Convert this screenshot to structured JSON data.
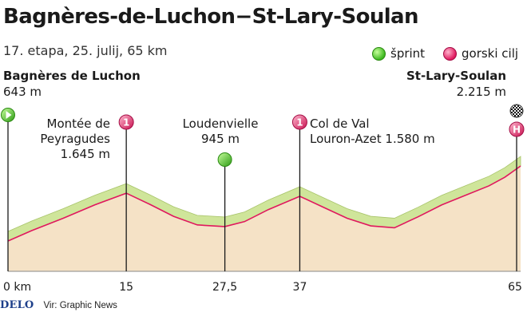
{
  "title": "Bagnères-de-Luchon−St-Lary-Soulan",
  "subtitle": "17. etapa, 25. julij, 65 km",
  "legend": [
    {
      "label": "šprint",
      "type": "sprint"
    },
    {
      "label": "gorski cilj",
      "type": "kom"
    }
  ],
  "start": {
    "name": "Bagnères de Luchon",
    "elevation": "643 m"
  },
  "finish": {
    "name": "St-Lary-Soulan",
    "elevation": "2.215 m"
  },
  "points": [
    {
      "line1": "Montée de",
      "line2": "Peyragudes",
      "line3": "1.645 m",
      "type": "kom",
      "badge": "1"
    },
    {
      "line1": "Loudenvielle",
      "line2": "945 m",
      "type": "sprint"
    },
    {
      "line1": "Col de Val",
      "line2": "Louron-Azet 1.580 m",
      "type": "kom",
      "badge": "1"
    },
    {
      "type": "finish",
      "badge": "H"
    }
  ],
  "colors": {
    "sprint": "#3db81f",
    "kom": "#e0185e",
    "profile_top": "#cfe59a",
    "profile_fill": "#f5e2c6",
    "profile_line": "#e0185e",
    "logo": "#1d3f8a"
  },
  "footer": {
    "logo": "DELO",
    "source": "Vir: Graphic News"
  },
  "chart_data": {
    "type": "area",
    "title": "Bagnères-de-Luchon−St-Lary-Soulan",
    "xlabel": "",
    "ylabel": "",
    "x_unit": "km",
    "xlim": [
      0,
      65
    ],
    "xticks": [
      0,
      15,
      27.5,
      37,
      65
    ],
    "xtick_labels": [
      "0 km",
      "15",
      "27,5",
      "37",
      "65"
    ],
    "x": [
      0,
      3,
      7,
      11,
      15,
      18,
      21,
      24,
      27.5,
      30,
      33,
      37,
      40,
      43,
      46,
      49,
      52,
      55,
      58,
      61,
      63,
      65
    ],
    "y": [
      643,
      860,
      1120,
      1400,
      1645,
      1410,
      1160,
      980,
      945,
      1050,
      1300,
      1580,
      1350,
      1120,
      960,
      920,
      1150,
      1400,
      1600,
      1800,
      1980,
      2215
    ],
    "markers": [
      {
        "x": 0,
        "type": "start"
      },
      {
        "x": 15,
        "type": "kom",
        "category": "1"
      },
      {
        "x": 27.5,
        "type": "sprint"
      },
      {
        "x": 37,
        "type": "kom",
        "category": "1"
      },
      {
        "x": 65,
        "type": "finish"
      }
    ]
  }
}
